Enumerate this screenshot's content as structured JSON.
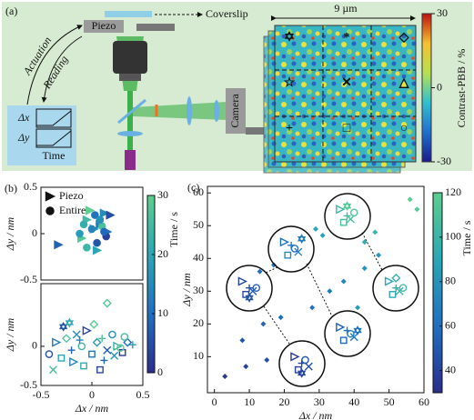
{
  "diagram": {
    "label": "(a)",
    "piezo": "Piezo",
    "coverslip": "Coverslip",
    "actuation": "Actuation",
    "reading": "Reading",
    "graph_dx": "Δx",
    "graph_dy": "Δy",
    "graph_time": "Time",
    "camera": "Camera",
    "scale_bar": "9 µm",
    "map_symbols": [
      "✡",
      "*",
      "◇",
      "☆",
      "✕",
      "△",
      "+",
      "□",
      "○"
    ],
    "colorbar": {
      "label": "Contrast-PBB / %",
      "lim": [
        -30,
        30
      ],
      "ticks": [
        30,
        0,
        -30
      ]
    }
  },
  "chart_data": [
    {
      "type": "scatter",
      "panel_label": "(b)",
      "ylabel": "Δy / nm",
      "xlim": [
        -0.5,
        0.5
      ],
      "ylim": [
        -0.5,
        0.5
      ],
      "yticks": [
        -0.5,
        0,
        0.5
      ],
      "clim": [
        0,
        30
      ],
      "colormap": [
        "#2a2d8c",
        "#1f6fc0",
        "#2aa6b5",
        "#5ccf8e"
      ],
      "filled": true,
      "legend": "upper left",
      "series": [
        {
          "name": "Piezo",
          "marker": "triangle",
          "x": [
            -0.33,
            -0.05,
            0.02,
            0.08,
            0.12,
            0.18,
            -0.1,
            0.05,
            0.15,
            -0.02
          ],
          "values": [
            -0.12,
            0.15,
            0.05,
            0.1,
            0.22,
            0.2,
            -0.05,
            -0.18,
            0.02,
            0.25
          ],
          "c": [
            8,
            25,
            18,
            12,
            15,
            5,
            28,
            20,
            10,
            30
          ]
        },
        {
          "name": "Entire",
          "marker": "circle",
          "x": [
            -0.08,
            0.0,
            0.05,
            0.1,
            -0.12,
            0.03,
            0.14,
            -0.05,
            0.08,
            0.12
          ],
          "values": [
            0.1,
            0.05,
            -0.1,
            0.08,
            0.0,
            0.2,
            -0.03,
            -0.15,
            0.15,
            0.02
          ],
          "c": [
            22,
            14,
            6,
            26,
            18,
            11,
            3,
            24,
            16,
            9
          ]
        }
      ]
    },
    {
      "type": "scatter",
      "ylabel": "Δy / nm",
      "xlabel": "Δx / nm",
      "xlim": [
        -0.5,
        0.5
      ],
      "ylim": [
        -0.5,
        0.8
      ],
      "xticks": [
        -0.5,
        0,
        0.5
      ],
      "yticks": [
        -0.5,
        0
      ],
      "clim": [
        0,
        30
      ],
      "colormap": [
        "#2a2d8c",
        "#1f6fc0",
        "#2aa6b5",
        "#5ccf8e"
      ],
      "filled": false,
      "colorbar": {
        "label": "Time / s",
        "ticks": [
          0,
          10,
          20,
          30
        ]
      },
      "series": [
        {
          "markers": [
            "circle",
            "triangle",
            "square",
            "diamond",
            "plus",
            "cross",
            "circle",
            "triangle",
            "square",
            "diamond",
            "plus",
            "cross",
            "circle",
            "triangle",
            "square",
            "diamond",
            "plus",
            "cross",
            "star",
            "triangle",
            "square",
            "diamond",
            "plus",
            "cross",
            "circle",
            "diamond",
            "star",
            "square",
            "plus",
            "circle"
          ],
          "x": [
            -0.42,
            -0.35,
            -0.3,
            -0.25,
            -0.2,
            -0.15,
            -0.1,
            -0.05,
            0,
            0.05,
            0.1,
            0.15,
            0.2,
            0.25,
            0.3,
            0.35,
            0.4,
            -0.38,
            -0.28,
            -0.18,
            -0.08,
            0.02,
            0.12,
            0.22,
            0.32,
            0.15,
            -0.22,
            0.08,
            -0.12,
            0.28
          ],
          "values": [
            -0.1,
            0.05,
            -0.15,
            0.1,
            -0.05,
            0.15,
            0,
            0.2,
            -0.1,
            0.05,
            0.1,
            -0.05,
            0.15,
            0,
            -0.08,
            0.05,
            0.02,
            -0.3,
            0.25,
            -0.2,
            -0.25,
            0.28,
            -0.18,
            -0.12,
            0.12,
            0.55,
            0.3,
            -0.3,
            0.08,
            -0.02
          ],
          "c": [
            5,
            12,
            20,
            28,
            8,
            16,
            24,
            3,
            11,
            19,
            27,
            7,
            15,
            23,
            2,
            10,
            18,
            26,
            6,
            14,
            22,
            30,
            9,
            17,
            25,
            28,
            21,
            4,
            13,
            29
          ]
        }
      ]
    },
    {
      "type": "scatter",
      "panel_label": "(c)",
      "ylabel": "Δy / nm",
      "xlabel": "Δx / nm",
      "xlim": [
        -2,
        60
      ],
      "ylim": [
        -1,
        62
      ],
      "xticks": [
        0,
        10,
        20,
        30,
        40,
        50,
        60
      ],
      "yticks": [
        10,
        20,
        30,
        40,
        50,
        60
      ],
      "clim": [
        30,
        120
      ],
      "colormap": [
        "#2a2d8c",
        "#1f6fc0",
        "#2aa6b5",
        "#5ccf8e"
      ],
      "filled": false,
      "colorbar": {
        "label": "Time / s",
        "ticks": [
          40,
          60,
          80,
          100,
          120
        ]
      },
      "series": [
        {
          "markers": [
            "triangle",
            "plus",
            "cross",
            "square",
            "circle",
            "star",
            "triangle",
            "plus",
            "cross",
            "square",
            "circle",
            "star",
            "triangle",
            "plus",
            "cross",
            "square",
            "circle",
            "star",
            "triangle",
            "plus",
            "cross",
            "square",
            "circle",
            "star",
            "triangle",
            "plus",
            "cross",
            "square",
            "circle",
            "star",
            "triangle",
            "plus",
            "cross",
            "square",
            "circle",
            "diamond"
          ],
          "x": [
            8,
            10,
            11,
            9,
            12,
            10,
            23,
            25,
            27,
            24,
            26,
            25,
            20,
            22,
            24,
            21,
            23,
            25,
            36,
            38,
            39,
            37,
            40,
            38,
            36,
            38,
            40,
            37,
            39,
            41,
            50,
            52,
            53,
            51,
            54,
            52
          ],
          "values": [
            33,
            31,
            30,
            29,
            31,
            28,
            10,
            8,
            7,
            6,
            9,
            5,
            45,
            44,
            42,
            41,
            43,
            46,
            55,
            53,
            52,
            51,
            54,
            56,
            19,
            18,
            16,
            15,
            17,
            18,
            33,
            31,
            30,
            29,
            31,
            34
          ],
          "c": [
            40,
            45,
            50,
            42,
            55,
            48,
            35,
            40,
            45,
            38,
            50,
            42,
            60,
            65,
            70,
            75,
            62,
            68,
            100,
            105,
            110,
            108,
            112,
            115,
            55,
            60,
            65,
            58,
            70,
            62,
            90,
            95,
            100,
            92,
            105,
            98
          ]
        },
        {
          "marker": "dot",
          "x": [
            3,
            9,
            15,
            8,
            14,
            19,
            28,
            33,
            37,
            43,
            47,
            13,
            17,
            29,
            31,
            43,
            46,
            56,
            58,
            41
          ],
          "values": [
            4,
            7,
            9,
            15,
            20,
            22,
            25,
            30,
            33,
            37,
            41,
            36,
            38,
            49,
            47,
            45,
            48,
            58,
            55,
            25
          ],
          "c": [
            35,
            40,
            45,
            48,
            55,
            58,
            62,
            68,
            72,
            78,
            82,
            60,
            64,
            90,
            88,
            95,
            100,
            118,
            115,
            85
          ]
        }
      ]
    }
  ]
}
